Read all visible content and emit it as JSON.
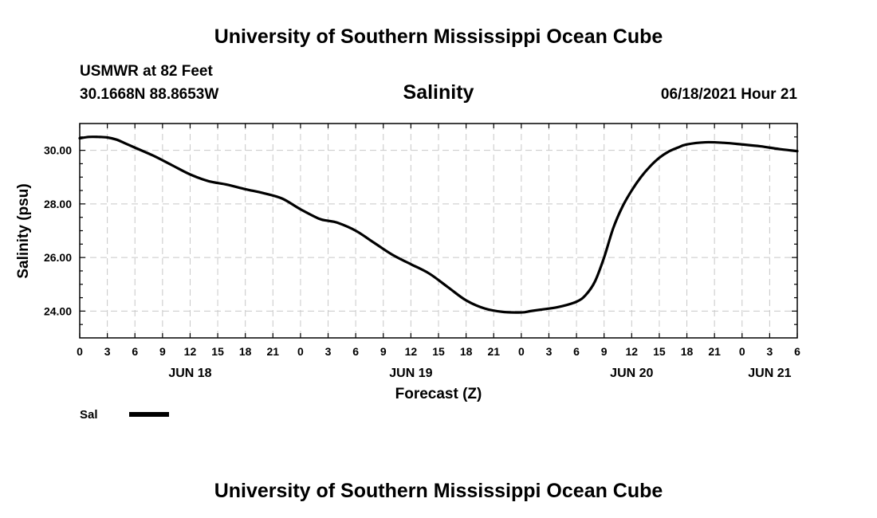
{
  "header": {
    "title": "University of Southern Mississippi Ocean Cube",
    "station": "USMWR at 82 Feet",
    "coords": "30.1668N  88.8653W",
    "timestamp": "06/18/2021 Hour 21"
  },
  "footer": {
    "title": "University of Southern Mississippi Ocean Cube"
  },
  "legend": {
    "label": "Sal"
  },
  "colors": {
    "line": "#000000",
    "grid": "#c8c8c8"
  },
  "chart_data": {
    "type": "line",
    "title": "Salinity",
    "xlabel": "Forecast (Z)",
    "ylabel": "Salinity (psu)",
    "xlim": [
      0,
      78
    ],
    "ylim": [
      23.0,
      31.0
    ],
    "yticks": [
      24.0,
      26.0,
      28.0,
      30.0
    ],
    "ytick_labels": [
      "24.00",
      "26.00",
      "28.00",
      "30.00"
    ],
    "xtick_labels": [
      "0",
      "3",
      "6",
      "9",
      "12",
      "15",
      "18",
      "21",
      "0",
      "3",
      "6",
      "9",
      "12",
      "15",
      "18",
      "21",
      "0",
      "3",
      "6",
      "9",
      "12",
      "15",
      "18",
      "21",
      "0",
      "3",
      "6"
    ],
    "day_labels": [
      {
        "label": "JUN 18",
        "x": 12
      },
      {
        "label": "JUN 19",
        "x": 36
      },
      {
        "label": "JUN 20",
        "x": 60
      },
      {
        "label": "JUN 21",
        "x": 75
      }
    ],
    "series": [
      {
        "name": "Sal",
        "x": [
          0,
          1,
          2,
          3,
          4,
          5,
          6,
          8,
          10,
          12,
          14,
          16,
          18,
          20,
          22,
          24,
          26,
          27,
          28,
          30,
          32,
          34,
          36,
          38,
          40,
          42,
          44,
          46,
          48,
          49,
          50,
          52,
          54,
          55,
          56,
          57,
          58,
          59,
          60,
          61,
          62,
          63,
          64,
          65,
          66,
          68,
          70,
          72,
          74,
          76,
          78
        ],
        "values": [
          30.45,
          30.5,
          30.5,
          30.48,
          30.4,
          30.25,
          30.1,
          29.8,
          29.45,
          29.1,
          28.85,
          28.72,
          28.55,
          28.4,
          28.2,
          27.8,
          27.45,
          27.37,
          27.3,
          27.0,
          26.55,
          26.1,
          25.75,
          25.4,
          24.9,
          24.4,
          24.1,
          23.97,
          23.95,
          24.0,
          24.05,
          24.15,
          24.35,
          24.6,
          25.1,
          26.0,
          27.1,
          27.9,
          28.5,
          29.0,
          29.4,
          29.72,
          29.95,
          30.1,
          30.22,
          30.3,
          30.28,
          30.22,
          30.15,
          30.05,
          29.97
        ]
      }
    ]
  }
}
